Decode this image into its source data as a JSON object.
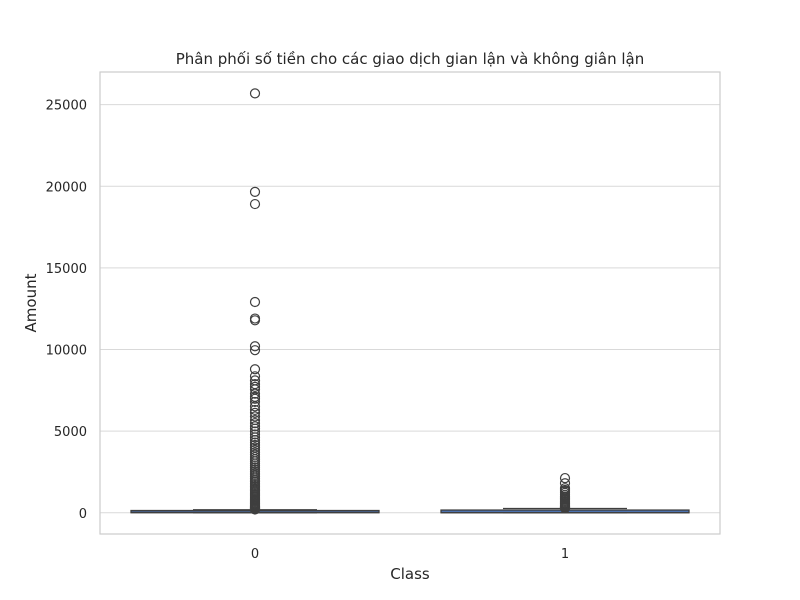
{
  "chart_data": {
    "type": "box",
    "title": "Phân phối số tiền cho các giao dịch gian lận và không giân lận",
    "xlabel": "Class",
    "ylabel": "Amount",
    "categories": [
      "0",
      "1"
    ],
    "ylim": [
      -1300,
      27000
    ],
    "yticks": [
      0,
      5000,
      10000,
      15000,
      20000,
      25000
    ],
    "grid": true,
    "box_color": "#4c72b0",
    "boxes": [
      {
        "category": "0",
        "whisker_low": 0,
        "q1": 5,
        "median": 22,
        "q3": 77,
        "whisker_high": 185,
        "outliers": [
          25690,
          19656,
          18910,
          12910,
          11898,
          11790,
          10200,
          9960,
          8790,
          8360,
          8110,
          7880,
          7712,
          7560,
          7300,
          7100,
          6980,
          6790,
          6520,
          6300,
          6120,
          5900,
          5680,
          5490,
          5300,
          5150,
          4980,
          4800,
          4620,
          4450,
          4300,
          4150,
          4000,
          3850,
          3700,
          3560,
          3420,
          3280,
          3150,
          3020,
          2900,
          2780,
          2660,
          2540,
          2430,
          2320,
          2210,
          2100,
          2000,
          1900,
          1800,
          1700,
          1610,
          1520,
          1430,
          1350,
          1270,
          1190,
          1110,
          1040,
          970,
          900,
          840,
          780,
          720,
          660,
          600,
          550,
          500,
          450,
          400,
          360,
          320,
          280,
          240,
          200
        ]
      },
      {
        "category": "1",
        "whisker_low": 0,
        "q1": 1,
        "median": 9,
        "q3": 106,
        "whisker_high": 260,
        "outliers": [
          2125,
          1810,
          1505,
          1400,
          1335,
          1220,
          1100,
          1000,
          930,
          860,
          790,
          720,
          660,
          600,
          550,
          500,
          450,
          410,
          370,
          330,
          300,
          275
        ]
      }
    ]
  }
}
